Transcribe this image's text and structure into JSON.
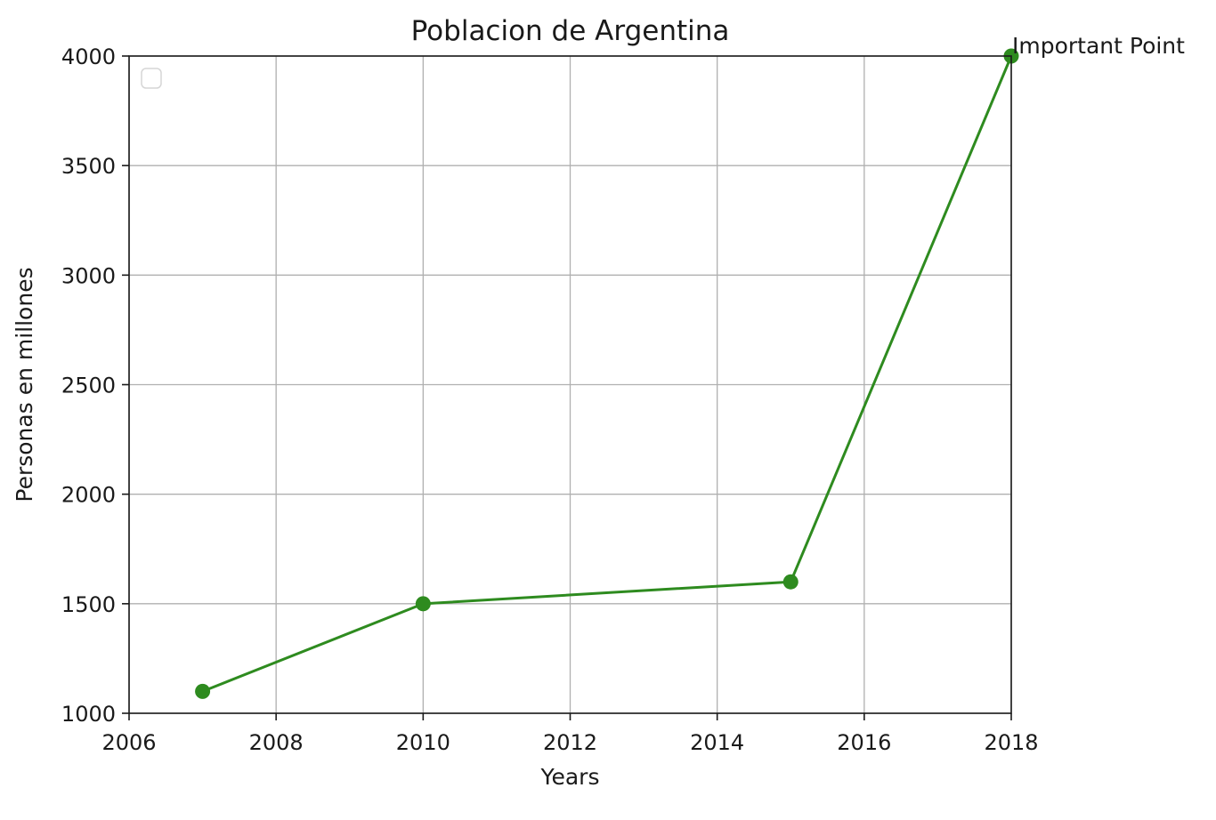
{
  "chart_data": {
    "type": "line",
    "title": "Poblacion de Argentina",
    "xlabel": "Years",
    "ylabel": "Personas en millones",
    "xlim": [
      2006,
      2018
    ],
    "ylim": [
      1000,
      4000
    ],
    "x_ticks": [
      2006,
      2008,
      2010,
      2012,
      2014,
      2016,
      2018
    ],
    "y_ticks": [
      1000,
      1500,
      2000,
      2500,
      3000,
      3500,
      4000
    ],
    "grid": true,
    "legend": {
      "placement": "upper-left",
      "entries": []
    },
    "series": [
      {
        "x": [
          2007,
          2010,
          2015,
          2018
        ],
        "y": [
          1100,
          1500,
          1600,
          4000
        ],
        "color": "#2e8b1f",
        "marker": "circle"
      }
    ],
    "annotations": [
      {
        "text": "Important Point",
        "x": 2018,
        "y": 4000
      }
    ]
  }
}
